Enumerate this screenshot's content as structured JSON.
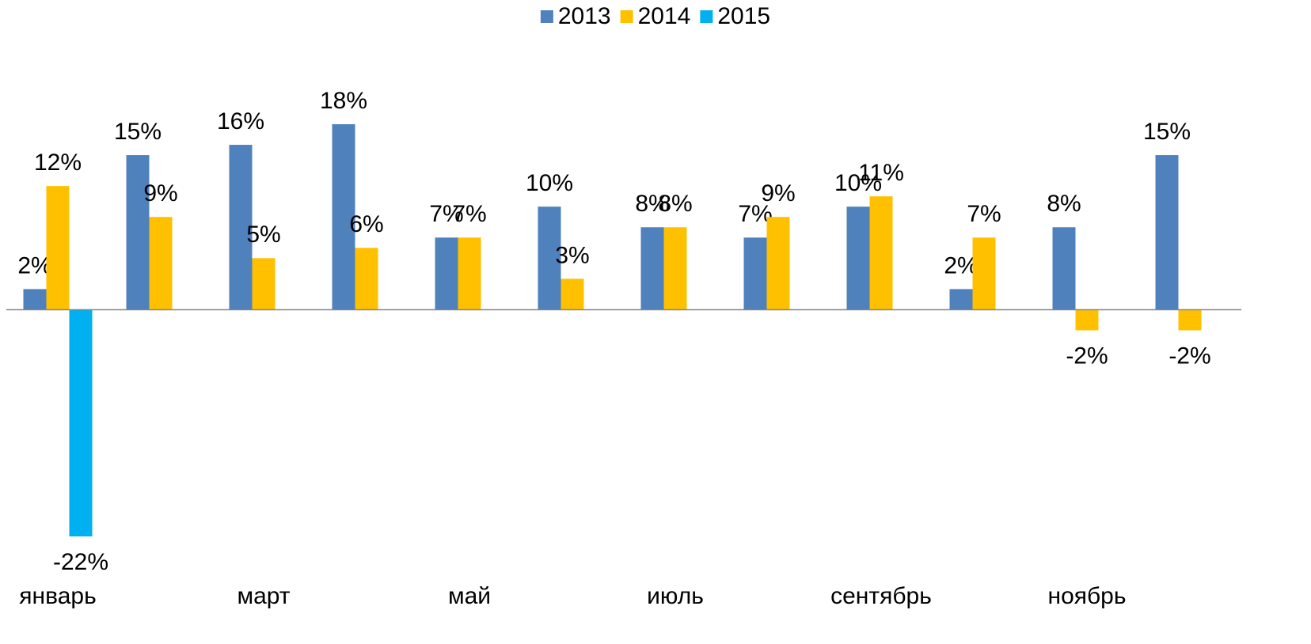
{
  "chart_data": {
    "type": "bar",
    "categories": [
      "январь",
      null,
      "март",
      null,
      "май",
      null,
      "июль",
      null,
      "сентябрь",
      null,
      "ноябрь",
      null
    ],
    "series": [
      {
        "name": "2013",
        "color": "#4f81bd",
        "values": [
          2,
          15,
          16,
          18,
          7,
          10,
          8,
          7,
          10,
          2,
          8,
          15
        ],
        "value_labels": [
          "2%",
          "15%",
          "16%",
          "18%",
          "7%",
          "10%",
          "8%",
          "7%",
          "10%",
          "2%",
          "8%",
          "15%"
        ]
      },
      {
        "name": "2014",
        "color": "#ffc000",
        "values": [
          12,
          9,
          5,
          6,
          7,
          3,
          8,
          9,
          11,
          7,
          -2,
          -2
        ],
        "value_labels": [
          "12%",
          "9%",
          "5%",
          "6%",
          "7%",
          "3%",
          "8%",
          "9%",
          "11%",
          "7%",
          "-2%",
          "-2%"
        ]
      },
      {
        "name": "2015",
        "color": "#00b0f0",
        "values": [
          -22,
          null,
          null,
          null,
          null,
          null,
          null,
          null,
          null,
          null,
          null,
          null
        ],
        "value_labels": [
          "-22%",
          null,
          null,
          null,
          null,
          null,
          null,
          null,
          null,
          null,
          null,
          null
        ]
      }
    ],
    "legend": "top"
  }
}
